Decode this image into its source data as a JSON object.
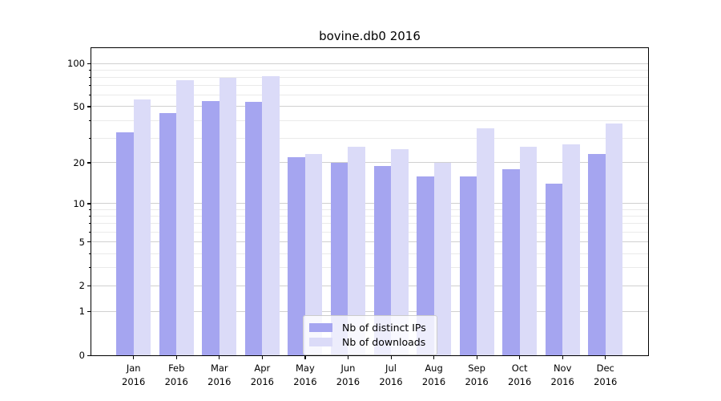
{
  "title": "bovine.db0 2016",
  "chart_data": {
    "type": "bar",
    "title": "bovine.db0 2016",
    "scale": "log10(1+y)",
    "grid": "on",
    "legend_position": "lower center",
    "categories": [
      "Jan",
      "Feb",
      "Mar",
      "Apr",
      "May",
      "Jun",
      "Jul",
      "Aug",
      "Sep",
      "Oct",
      "Nov",
      "Dec"
    ],
    "year": "2016",
    "series": [
      {
        "name": "Nb of distinct IPs",
        "color": "#a5a5f0",
        "values": [
          33,
          45,
          55,
          54,
          22,
          20,
          19,
          16,
          16,
          18,
          14,
          23
        ]
      },
      {
        "name": "Nb of downloads",
        "color": "#dbdbf8",
        "values": [
          56,
          76,
          79,
          81,
          23,
          26,
          25,
          20,
          35,
          26,
          27,
          38
        ]
      }
    ],
    "y_major_ticks": [
      100,
      50,
      20,
      10,
      5,
      2,
      1,
      0
    ],
    "y_minor_ticks": [
      3,
      4,
      6,
      7,
      8,
      9,
      30,
      40,
      60,
      70,
      80,
      90
    ],
    "ylim": [
      0,
      128
    ]
  },
  "colors": {
    "major_grid": "#d0d0d0",
    "minor_grid": "#eaeaea",
    "axis": "#000000",
    "background": "#ffffff",
    "bar_distinct_ips": "#a5a5f0",
    "bar_downloads": "#dbdbf8",
    "legend_border": "#cccccc"
  }
}
